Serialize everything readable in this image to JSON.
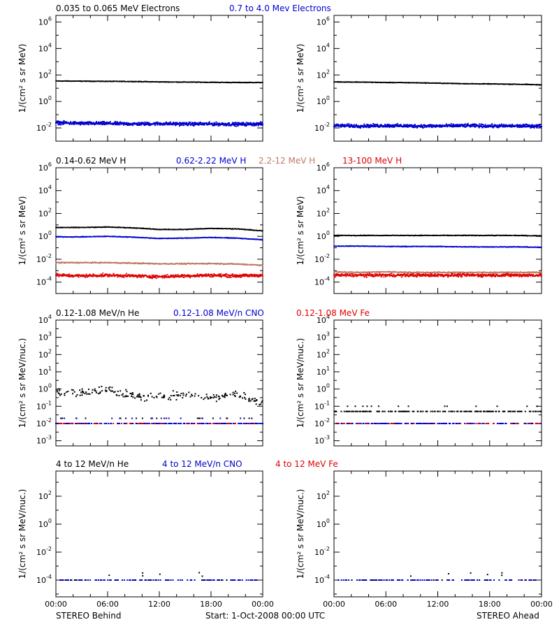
{
  "colors": {
    "black": "#000000",
    "blue": "#0000d0",
    "tan": "#c07a63",
    "red": "#e00000"
  },
  "footer": {
    "left_label": "STEREO Behind",
    "center_label": "Start:   1-Oct-2008 00:00 UTC",
    "right_label": "STEREO Ahead"
  },
  "x_axis": {
    "tick_labels": [
      "00:00",
      "06:00",
      "12:00",
      "18:00",
      "00:00"
    ],
    "xlim_hours": [
      0,
      24
    ]
  },
  "rows": [
    {
      "key": "electrons",
      "ylabel": "1/(cm² s sr MeV)",
      "series_labels": [
        {
          "text": "0.035 to 0.065 MeV Electrons",
          "color": "#000000"
        },
        {
          "text": "0.7 to 4.0 Mev Electrons",
          "color": "#0000d0"
        }
      ],
      "ylim_log10": [
        -3,
        6.5
      ],
      "y_tick_exponents": [
        -2,
        0,
        2,
        4,
        6
      ],
      "log_base10_labels": true
    },
    {
      "key": "protons",
      "ylabel": "1/(cm² s sr MeV)",
      "series_labels": [
        {
          "text": "0.14-0.62 MeV H",
          "color": "#000000"
        },
        {
          "text": "0.62-2.22 MeV H",
          "color": "#0000d0"
        },
        {
          "text": "2.2-12 MeV H",
          "color": "#c07a63"
        },
        {
          "text": "13-100 MeV H",
          "color": "#e00000"
        }
      ],
      "ylim_log10": [
        -5,
        6
      ],
      "y_tick_exponents": [
        -4,
        -2,
        0,
        2,
        4,
        6
      ],
      "log_base10_labels": true
    },
    {
      "key": "low_energy_ions",
      "ylabel": "1/(cm² s sr MeV/nuc.)",
      "series_labels": [
        {
          "text": "0.12-1.08 MeV/n He",
          "color": "#000000"
        },
        {
          "text": "0.12-1.08 MeV/n CNO",
          "color": "#0000d0"
        },
        {
          "text": "0.12-1.08 MeV Fe",
          "color": "#e00000"
        }
      ],
      "ylim_log10": [
        -3.3,
        4
      ],
      "y_tick_exponents": [
        -3,
        -2,
        -1,
        0,
        1,
        2,
        3,
        4
      ],
      "log_base10_labels": true
    },
    {
      "key": "high_energy_ions",
      "ylabel": "1/(cm² s sr MeV/nuc.)",
      "series_labels": [
        {
          "text": "4 to 12 MeV/n He",
          "color": "#000000"
        },
        {
          "text": "4 to 12 MeV/n CNO",
          "color": "#0000d0"
        },
        {
          "text": "4 to 12 MeV Fe",
          "color": "#e00000"
        }
      ],
      "ylim_log10": [
        -5.2,
        3.8
      ],
      "y_tick_exponents": [
        -4,
        -2,
        0,
        2
      ],
      "log_base10_labels": true
    }
  ],
  "chart_data": [
    {
      "type": "scatter",
      "panel": "STEREO Behind / electrons",
      "x_unit": "hours since start",
      "y_scale": "log",
      "series": [
        {
          "name": "0.035 to 0.065 MeV Electrons",
          "color": "#000000",
          "x": [
            0,
            3,
            6,
            9,
            12,
            15,
            18,
            21,
            24
          ],
          "y": [
            35,
            34,
            33,
            32,
            30,
            29,
            28,
            27,
            27
          ]
        },
        {
          "name": "0.7 to 4.0 Mev Electrons",
          "color": "#0000d0",
          "x": [
            0,
            3,
            6,
            9,
            12,
            15,
            18,
            21,
            24
          ],
          "y": [
            0.025,
            0.022,
            0.022,
            0.02,
            0.021,
            0.02,
            0.02,
            0.019,
            0.02
          ]
        }
      ]
    },
    {
      "type": "scatter",
      "panel": "STEREO Ahead / electrons",
      "x_unit": "hours since start",
      "y_scale": "log",
      "series": [
        {
          "name": "0.035 to 0.065 MeV Electrons",
          "color": "#000000",
          "x": [
            0,
            3,
            6,
            9,
            12,
            15,
            18,
            21,
            24
          ],
          "y": [
            30,
            29,
            27,
            26,
            24,
            22,
            21,
            20,
            18
          ]
        },
        {
          "name": "0.7 to 4.0 Mev Electrons",
          "color": "#0000d0",
          "x": [
            0,
            3,
            6,
            9,
            12,
            15,
            18,
            21,
            24
          ],
          "y": [
            0.015,
            0.014,
            0.015,
            0.014,
            0.014,
            0.015,
            0.014,
            0.014,
            0.014
          ]
        }
      ]
    },
    {
      "type": "scatter",
      "panel": "STEREO Behind / protons",
      "x_unit": "hours since start",
      "y_scale": "log",
      "series": [
        {
          "name": "0.14-0.62 MeV H",
          "color": "#000000",
          "x": [
            0,
            3,
            6,
            9,
            12,
            15,
            18,
            21,
            24
          ],
          "y": [
            6,
            6,
            6.5,
            5.5,
            4,
            4,
            5,
            4.5,
            3
          ]
        },
        {
          "name": "0.62-2.22 MeV H",
          "color": "#0000d0",
          "x": [
            0,
            3,
            6,
            9,
            12,
            15,
            18,
            21,
            24
          ],
          "y": [
            0.9,
            0.9,
            1.0,
            0.85,
            0.65,
            0.7,
            0.8,
            0.7,
            0.5
          ]
        },
        {
          "name": "2.2-12 MeV H",
          "color": "#c07a63",
          "x": [
            0,
            3,
            6,
            9,
            12,
            15,
            18,
            21,
            24
          ],
          "y": [
            0.005,
            0.005,
            0.005,
            0.0045,
            0.004,
            0.004,
            0.0042,
            0.0038,
            0.003
          ]
        },
        {
          "name": "13-100 MeV H",
          "color": "#e00000",
          "x": [
            0,
            3,
            6,
            9,
            12,
            15,
            18,
            21,
            24
          ],
          "y": [
            0.0004,
            0.00035,
            0.0004,
            0.00035,
            0.0003,
            0.00035,
            0.0004,
            0.00035,
            0.0004
          ]
        }
      ]
    },
    {
      "type": "scatter",
      "panel": "STEREO Ahead / protons",
      "x_unit": "hours since start",
      "y_scale": "log",
      "series": [
        {
          "name": "0.14-0.62 MeV H",
          "color": "#000000",
          "x": [
            0,
            3,
            6,
            9,
            12,
            15,
            18,
            21,
            24
          ],
          "y": [
            1.2,
            1.2,
            1.2,
            1.2,
            1.2,
            1.2,
            1.2,
            1.2,
            1.1
          ]
        },
        {
          "name": "0.62-2.22 MeV H",
          "color": "#0000d0",
          "x": [
            0,
            3,
            6,
            9,
            12,
            15,
            18,
            21,
            24
          ],
          "y": [
            0.14,
            0.14,
            0.13,
            0.13,
            0.13,
            0.12,
            0.12,
            0.12,
            0.11
          ]
        },
        {
          "name": "2.2-12 MeV H",
          "color": "#c07a63",
          "x": [
            0,
            3,
            6,
            9,
            12,
            15,
            18,
            21,
            24
          ],
          "y": [
            0.0008,
            0.0007,
            0.0008,
            0.0007,
            0.0007,
            0.0007,
            0.0007,
            0.0007,
            0.0007
          ]
        },
        {
          "name": "13-100 MeV H",
          "color": "#e00000",
          "x": [
            0,
            3,
            6,
            9,
            12,
            15,
            18,
            21,
            24
          ],
          "y": [
            0.0004,
            0.0004,
            0.0004,
            0.0004,
            0.0004,
            0.0004,
            0.0004,
            0.0004,
            0.0004
          ]
        }
      ]
    },
    {
      "type": "scatter",
      "panel": "STEREO Behind / low energy ions",
      "x_unit": "hours since start",
      "y_scale": "log",
      "series": [
        {
          "name": "0.12-1.08 MeV/n He",
          "color": "#000000",
          "x": [
            0,
            3,
            6,
            9,
            12,
            15,
            18,
            21,
            24
          ],
          "y": [
            0.7,
            0.6,
            0.9,
            0.4,
            0.35,
            0.45,
            0.3,
            0.5,
            0.15
          ]
        },
        {
          "name": "0.12-1.08 MeV/n CNO",
          "color": "#0000d0",
          "x": [
            0,
            3,
            6,
            9,
            12,
            15,
            18,
            21,
            24
          ],
          "y": [
            0.01,
            0.01,
            0.01,
            0.01,
            0.01,
            0.01,
            0.01,
            0.01,
            0.01
          ]
        },
        {
          "name": "0.12-1.08 MeV Fe",
          "color": "#e00000",
          "x": [
            0,
            3,
            6,
            9,
            12,
            15,
            18,
            21,
            24
          ],
          "y": [
            0.01,
            0.01,
            0.01,
            0.01,
            0.01,
            0.01,
            0.01,
            0.01,
            0.01
          ]
        }
      ]
    },
    {
      "type": "scatter",
      "panel": "STEREO Ahead / low energy ions",
      "x_unit": "hours since start",
      "y_scale": "log",
      "series": [
        {
          "name": "0.12-1.08 MeV/n He",
          "color": "#000000",
          "x": [
            0,
            3,
            6,
            9,
            12,
            15,
            18,
            21,
            24
          ],
          "y": [
            0.05,
            0.05,
            0.05,
            0.05,
            0.05,
            0.05,
            0.05,
            0.05,
            0.05
          ]
        },
        {
          "name": "0.12-1.08 MeV/n CNO",
          "color": "#0000d0",
          "x": [
            0,
            3,
            6,
            9,
            12,
            15,
            18,
            21,
            24
          ],
          "y": [
            0.01,
            0.01,
            0.01,
            0.01,
            0.01,
            0.01,
            0.01,
            0.01,
            0.01
          ]
        },
        {
          "name": "0.12-1.08 MeV Fe",
          "color": "#e00000",
          "x": [
            0,
            3,
            6,
            9,
            12,
            15,
            18,
            21,
            24
          ],
          "y": [
            0.01,
            0.01,
            0.01,
            0.01,
            0.01,
            0.01,
            0.01,
            0.01,
            0.01
          ]
        }
      ]
    },
    {
      "type": "scatter",
      "panel": "STEREO Behind / high energy ions",
      "x_unit": "hours since start",
      "y_scale": "log",
      "series": [
        {
          "name": "4 to 12 MeV/n He",
          "color": "#000000",
          "x": [
            0,
            3,
            6,
            9,
            12,
            15,
            18,
            21,
            24
          ],
          "y": [
            0.0001,
            0.0001,
            0.0001,
            0.0001,
            0.0001,
            0.0001,
            0.0001,
            0.0001,
            0.0001
          ]
        },
        {
          "name": "4 to 12 MeV/n CNO",
          "color": "#0000d0",
          "x": [
            0,
            3,
            6,
            9,
            12,
            15,
            18,
            21,
            24
          ],
          "y": [
            0.0001,
            0.0001,
            0.0001,
            0.0001,
            0.0001,
            0.0001,
            0.0001,
            0.0001,
            0.0001
          ]
        }
      ]
    },
    {
      "type": "scatter",
      "panel": "STEREO Ahead / high energy ions",
      "x_unit": "hours since start",
      "y_scale": "log",
      "series": [
        {
          "name": "4 to 12 MeV/n He",
          "color": "#000000",
          "x": [
            0,
            3,
            6,
            9,
            12,
            15,
            18,
            21,
            24
          ],
          "y": [
            0.0001,
            0.0001,
            0.0001,
            0.0001,
            0.0001,
            0.0001,
            0.0001,
            0.0001,
            0.0001
          ]
        },
        {
          "name": "4 to 12 MeV/n CNO",
          "color": "#0000d0",
          "x": [
            0,
            3,
            6,
            9,
            12,
            15,
            18,
            21,
            24
          ],
          "y": [
            0.0001,
            0.0001,
            0.0001,
            0.0001,
            0.0001,
            0.0001,
            0.0001,
            0.0001,
            0.0001
          ]
        }
      ]
    }
  ]
}
